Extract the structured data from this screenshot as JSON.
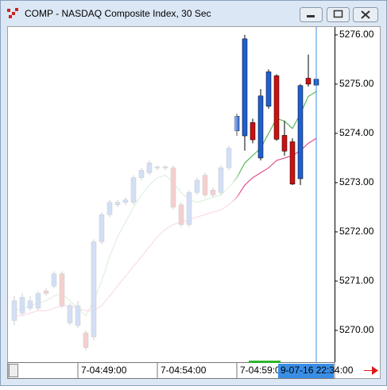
{
  "window": {
    "title": "COMP - NASDAQ Composite Index, 30 Sec"
  },
  "chart_data": {
    "type": "candlestick",
    "categories": [
      null,
      null,
      null,
      null,
      null,
      null,
      null,
      null,
      null,
      null,
      null,
      null,
      null,
      null,
      null,
      null,
      null,
      null,
      null,
      null,
      null,
      null,
      null,
      null,
      null,
      null,
      null,
      null,
      null,
      null,
      null,
      null,
      null,
      null,
      null,
      null,
      null,
      null,
      null
    ],
    "series": [
      {
        "up_color": "#1f5fd0",
        "down_color": "#cc1111",
        "open": [
          5270.2,
          5270.35,
          5270.45,
          5270.45,
          5270.8,
          5270.9,
          5271.15,
          5270.15,
          5270.1,
          5269.95,
          5269.87,
          5271.8,
          5272.35,
          5272.55,
          5272.6,
          5272.6,
          5273.1,
          5273.2,
          5273.3,
          5273.3,
          5273.3,
          5272.55,
          5272.15,
          5272.8,
          5273.15,
          5272.85,
          5272.8,
          5273.3,
          5274.05,
          5273.95,
          5274.22,
          5273.5,
          5274.55,
          5275.17,
          5273.96,
          5273.83,
          5273.08,
          5275.12,
          5274.98
        ],
        "high": [
          5270.7,
          5270.75,
          5270.7,
          5270.8,
          5270.85,
          5271.2,
          5271.2,
          5270.55,
          5270.6,
          5270.0,
          5271.85,
          5272.4,
          5272.65,
          5272.65,
          5272.7,
          5273.15,
          5273.3,
          5273.45,
          5273.35,
          5273.35,
          5273.35,
          5272.6,
          5272.85,
          5273.1,
          5273.2,
          5272.9,
          5273.35,
          5273.75,
          5274.4,
          5276.0,
          5274.3,
          5274.9,
          5275.3,
          5275.2,
          5274.25,
          5273.9,
          5275.0,
          5275.6,
          5275.65
        ],
        "low": [
          5270.1,
          5270.3,
          5270.4,
          5270.4,
          5270.7,
          5270.85,
          5270.45,
          5270.1,
          5270.05,
          5269.6,
          5269.8,
          5271.75,
          5272.3,
          5272.5,
          5272.55,
          5272.55,
          5273.05,
          5273.15,
          5273.25,
          5273.25,
          5272.45,
          5272.1,
          5272.1,
          5272.75,
          5272.7,
          5272.7,
          5272.75,
          5273.25,
          5273.95,
          5273.65,
          5273.8,
          5273.45,
          5274.5,
          5273.85,
          5273.55,
          5272.95,
          5272.95,
          5274.95,
          5274.7
        ],
        "close": [
          5270.6,
          5270.67,
          5270.6,
          5270.75,
          5270.75,
          5271.15,
          5270.5,
          5270.5,
          5270.5,
          5269.65,
          5271.8,
          5272.35,
          5272.6,
          5272.6,
          5272.65,
          5273.1,
          5273.25,
          5273.4,
          5273.32,
          5273.32,
          5272.5,
          5272.15,
          5272.8,
          5273.05,
          5272.75,
          5272.75,
          5273.3,
          5273.7,
          5274.35,
          5275.92,
          5273.87,
          5274.76,
          5275.25,
          5273.88,
          5273.64,
          5272.97,
          5274.97,
          5275.0,
          5275.1
        ]
      }
    ],
    "lines": [
      {
        "color": "#5cb85c",
        "values": [
          5270.4,
          5270.45,
          5270.5,
          5270.55,
          5270.6,
          5270.7,
          5270.75,
          5270.6,
          5270.45,
          5270.3,
          5270.6,
          5271.0,
          5271.5,
          5271.9,
          5272.2,
          5272.5,
          5272.75,
          5272.95,
          5273.1,
          5273.15,
          5273.0,
          5272.8,
          5272.65,
          5272.6,
          5272.65,
          5272.7,
          5272.75,
          5272.9,
          5273.1,
          5273.4,
          5273.55,
          5273.7,
          5274.0,
          5274.3,
          5274.25,
          5274.1,
          5274.4,
          5274.75,
          5274.85
        ]
      },
      {
        "color": "#e0508f",
        "values": [
          5270.3,
          5270.3,
          5270.35,
          5270.4,
          5270.4,
          5270.45,
          5270.5,
          5270.5,
          5270.45,
          5270.4,
          5270.4,
          5270.5,
          5270.7,
          5270.9,
          5271.1,
          5271.3,
          5271.5,
          5271.7,
          5271.9,
          5272.05,
          5272.15,
          5272.2,
          5272.25,
          5272.3,
          5272.35,
          5272.4,
          5272.45,
          5272.55,
          5272.7,
          5272.95,
          5273.1,
          5273.2,
          5273.3,
          5273.45,
          5273.5,
          5273.55,
          5273.65,
          5273.8,
          5273.9
        ]
      }
    ],
    "ylim": [
      5269.37,
      5276.16
    ],
    "yticks": [
      {
        "value": 5270,
        "label": "5270.00"
      },
      {
        "value": 5271,
        "label": "5271.00"
      },
      {
        "value": 5272,
        "label": "5272.00"
      },
      {
        "value": 5273,
        "label": "5273.00"
      },
      {
        "value": 5274,
        "label": "5274.00"
      },
      {
        "value": 5275,
        "label": "5275.00"
      },
      {
        "value": 5276,
        "label": "5276.00"
      }
    ],
    "xticks": [
      {
        "value": 8,
        "label": "7-04:49:00"
      },
      {
        "value": 18,
        "label": "7-04:54:00"
      },
      {
        "value": 28,
        "label": "7-04:59:00"
      }
    ],
    "cursor": {
      "index": 38,
      "label": "9-07-16 22:34:00",
      "color": "#3a8ee6"
    }
  }
}
